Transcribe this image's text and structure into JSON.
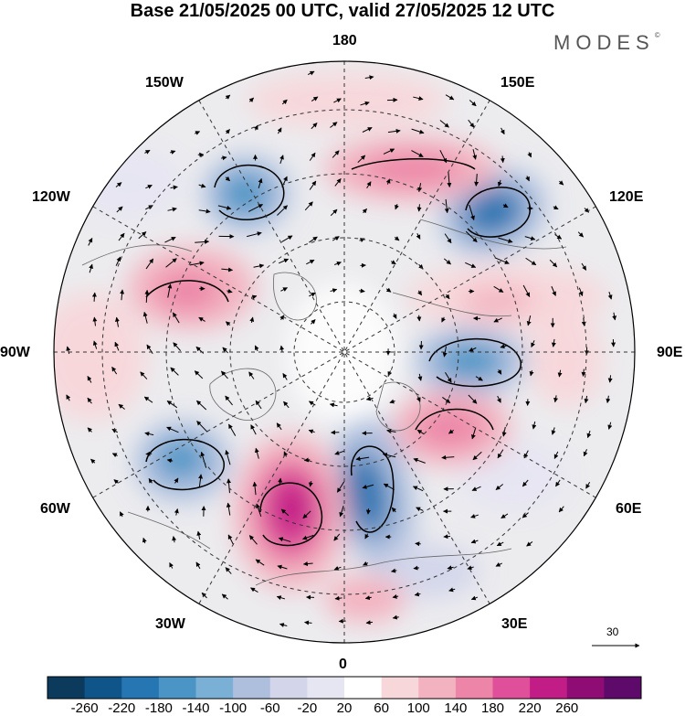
{
  "title": "Base 21/05/2025 00 UTC, valid 27/05/2025 12 UTC",
  "logo": {
    "text": "MODES",
    "mark": "©"
  },
  "longitude_labels": {
    "lon_180": "180",
    "lon_150e": "150E",
    "lon_120e": "120E",
    "lon_90e": "90E",
    "lon_60e": "60E",
    "lon_30e": "30E",
    "lon_0": "0",
    "lon_30w": "30W",
    "lon_60w": "60W",
    "lon_90w": "90W",
    "lon_120w": "120W",
    "lon_150w": "150W"
  },
  "reference_vector": {
    "value": "30"
  },
  "colorbar": {
    "labels": [
      "-260",
      "-220",
      "-180",
      "-140",
      "-100",
      "-60",
      "-20",
      "20",
      "60",
      "100",
      "140",
      "180",
      "220",
      "260"
    ],
    "colors": [
      "#0b3a5c",
      "#10558a",
      "#2576b2",
      "#4a95c6",
      "#7aafd6",
      "#aebfde",
      "#d3d6ea",
      "#e6e5f2",
      "#ffffff",
      "#f7d7da",
      "#f3b2bf",
      "#ec85a8",
      "#e04f99",
      "#c21c87",
      "#8e0c74",
      "#5e0a6b"
    ],
    "end_colors": {
      "low": "#0b3a5c",
      "high": "#5e0a6b"
    }
  },
  "anomaly_centres": [
    {
      "id": "low-pacific",
      "value": -170
    },
    {
      "id": "low-east-siberia",
      "value": -200
    },
    {
      "id": "low-central-asia",
      "value": -160
    },
    {
      "id": "low-europe",
      "value": -210
    },
    {
      "id": "low-atlantic",
      "value": -150
    },
    {
      "id": "high-north-pacific",
      "value": 150
    },
    {
      "id": "high-canada",
      "value": 150
    },
    {
      "id": "high-siberia",
      "value": 140
    },
    {
      "id": "high-west-russia",
      "value": 160
    },
    {
      "id": "high-north-atlantic",
      "value": 240
    },
    {
      "id": "high-mediterranean",
      "value": 90
    }
  ]
}
